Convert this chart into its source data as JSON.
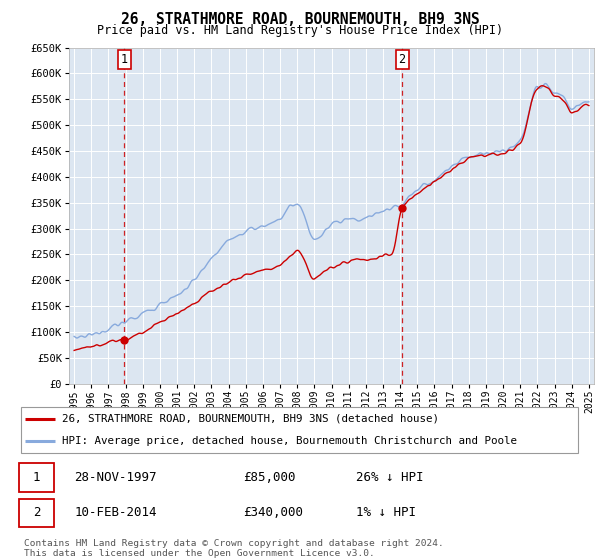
{
  "title": "26, STRATHMORE ROAD, BOURNEMOUTH, BH9 3NS",
  "subtitle": "Price paid vs. HM Land Registry's House Price Index (HPI)",
  "ylim": [
    0,
    650000
  ],
  "yticks": [
    0,
    50000,
    100000,
    150000,
    200000,
    250000,
    300000,
    350000,
    400000,
    450000,
    500000,
    550000,
    600000,
    650000
  ],
  "ytick_labels": [
    "£0",
    "£50K",
    "£100K",
    "£150K",
    "£200K",
    "£250K",
    "£300K",
    "£350K",
    "£400K",
    "£450K",
    "£500K",
    "£550K",
    "£600K",
    "£650K"
  ],
  "xlim_start": 1994.7,
  "xlim_end": 2025.3,
  "background_color": "#dce6f1",
  "grid_color": "#ffffff",
  "red_line_color": "#cc0000",
  "blue_line_color": "#88aadd",
  "transaction1_x": 1997.91,
  "transaction1_y": 85000,
  "transaction2_x": 2014.12,
  "transaction2_y": 340000,
  "legend_line1": "26, STRATHMORE ROAD, BOURNEMOUTH, BH9 3NS (detached house)",
  "legend_line2": "HPI: Average price, detached house, Bournemouth Christchurch and Poole",
  "table_row1_date": "28-NOV-1997",
  "table_row1_price": "£85,000",
  "table_row1_hpi": "26% ↓ HPI",
  "table_row2_date": "10-FEB-2014",
  "table_row2_price": "£340,000",
  "table_row2_hpi": "1% ↓ HPI",
  "copyright": "Contains HM Land Registry data © Crown copyright and database right 2024.\nThis data is licensed under the Open Government Licence v3.0."
}
